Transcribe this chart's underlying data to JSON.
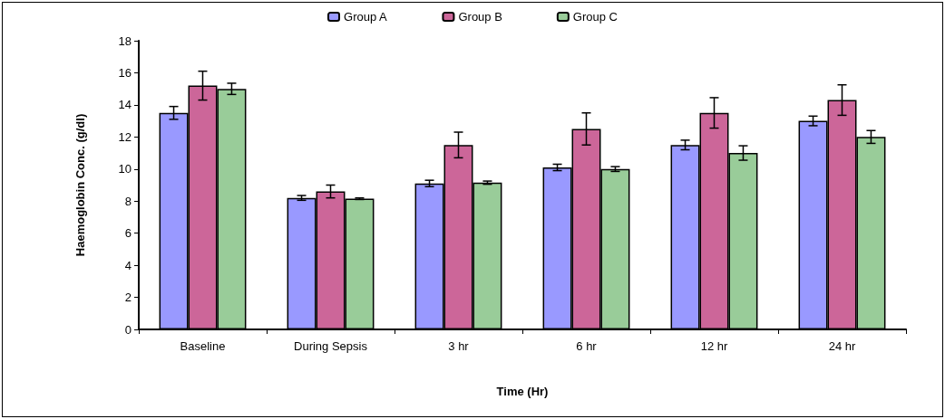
{
  "chart_data": {
    "type": "bar",
    "xlabel": "Time (Hr)",
    "ylabel": "Haemoglobin Conc. (g/dl)",
    "categories": [
      "Baseline",
      "During Sepsis",
      "3 hr",
      "6 hr",
      "12 hr",
      "24 hr"
    ],
    "series": [
      {
        "name": "Group A",
        "color": "#9999ff",
        "values": [
          13.5,
          8.2,
          9.1,
          10.1,
          11.5,
          13.0
        ],
        "errors": [
          0.4,
          0.15,
          0.2,
          0.2,
          0.3,
          0.3
        ]
      },
      {
        "name": "Group B",
        "color": "#cc6699",
        "values": [
          15.2,
          8.6,
          11.5,
          12.5,
          13.5,
          14.3
        ],
        "errors": [
          0.9,
          0.4,
          0.8,
          1.0,
          0.95,
          0.95
        ]
      },
      {
        "name": "Group C",
        "color": "#99cc99",
        "values": [
          15.0,
          8.15,
          9.15,
          10.0,
          11.0,
          12.0
        ],
        "errors": [
          0.35,
          0.05,
          0.1,
          0.15,
          0.45,
          0.4
        ]
      }
    ],
    "ylim": [
      0,
      18
    ],
    "yticks": [
      0,
      2,
      4,
      6,
      8,
      10,
      12,
      14,
      16,
      18
    ],
    "grid": false,
    "legend": "top"
  }
}
